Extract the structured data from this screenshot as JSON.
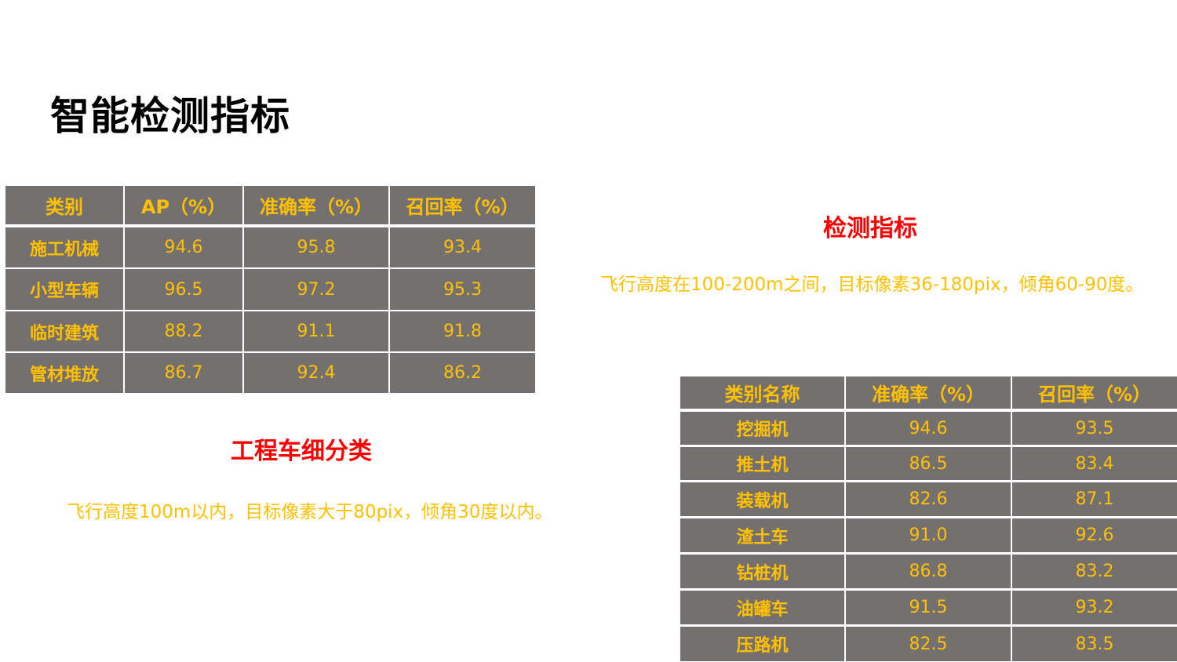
{
  "page_title": "智能检测指标",
  "colors": {
    "cell_bg": "#757070",
    "cell_text": "#FFC000",
    "subtitle": "#FF0000",
    "note": "#FFC000"
  },
  "table1": {
    "headers": [
      "类别",
      "AP（%）",
      "准确率（%）",
      "召回率（%）"
    ],
    "rows": [
      [
        "施工机械",
        "94.6",
        "95.8",
        "93.4"
      ],
      [
        "小型车辆",
        "96.5",
        "97.2",
        "95.3"
      ],
      [
        "临时建筑",
        "88.2",
        "91.1",
        "91.8"
      ],
      [
        "管材堆放",
        "86.7",
        "92.4",
        "86.2"
      ]
    ]
  },
  "section1": {
    "subtitle": "检测指标",
    "note": "飞行高度在100-200m之间，目标像素36-180pix，倾角60-90度。"
  },
  "section2": {
    "subtitle": "工程车细分类",
    "note": "飞行高度100m以内，目标像素大于80pix，倾角30度以内。"
  },
  "table2": {
    "headers": [
      "类别名称",
      "准确率（%）",
      "召回率（%）"
    ],
    "rows": [
      [
        "挖掘机",
        "94.6",
        "93.5"
      ],
      [
        "推土机",
        "86.5",
        "83.4"
      ],
      [
        "装载机",
        "82.6",
        "87.1"
      ],
      [
        "渣土车",
        "91.0",
        "92.6"
      ],
      [
        "钻桩机",
        "86.8",
        "83.2"
      ],
      [
        "油罐车",
        "91.5",
        "93.2"
      ],
      [
        "压路机",
        "82.5",
        "83.5"
      ]
    ]
  }
}
